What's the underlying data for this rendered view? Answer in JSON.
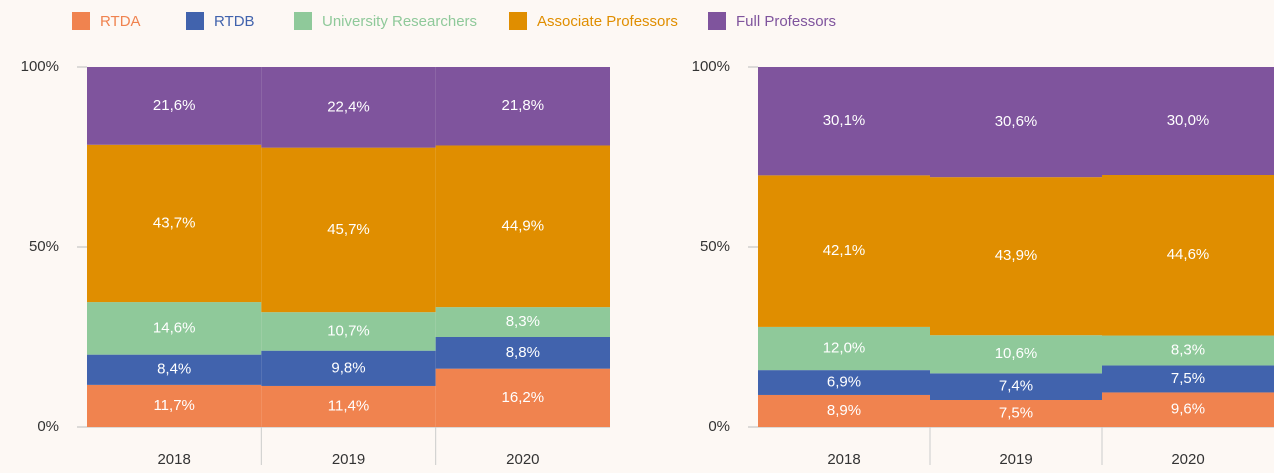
{
  "chart_data": [
    {
      "type": "stacked_bar_100",
      "categories": [
        "2018",
        "2019",
        "2020"
      ],
      "ylim": [
        0,
        100
      ],
      "yticks": [
        {
          "value": 0,
          "label": "0%"
        },
        {
          "value": 50,
          "label": "50%"
        },
        {
          "value": 100,
          "label": "100%"
        }
      ],
      "series": [
        {
          "name": "RTDA",
          "color": "#f0834f",
          "values": [
            11.7,
            11.4,
            16.2
          ],
          "value_labels": [
            "11,7%",
            "11,4%",
            "16,2%"
          ]
        },
        {
          "name": "RTDB",
          "color": "#4163ad",
          "values": [
            8.4,
            9.8,
            8.8
          ],
          "value_labels": [
            "8,4%",
            "9,8%",
            "8,8%"
          ]
        },
        {
          "name": "University Researchers",
          "color": "#8fc99a",
          "values": [
            14.6,
            10.7,
            8.3
          ],
          "value_labels": [
            "14,6%",
            "10,7%",
            "8,3%"
          ]
        },
        {
          "name": "Associate Professors",
          "color": "#e08e00",
          "values": [
            43.7,
            45.7,
            44.9
          ],
          "value_labels": [
            "43,7%",
            "45,7%",
            "44,9%"
          ]
        },
        {
          "name": "Full Professors",
          "color": "#7f549d",
          "values": [
            21.6,
            22.4,
            21.8
          ],
          "value_labels": [
            "21,6%",
            "22,4%",
            "21,8%"
          ]
        }
      ]
    },
    {
      "type": "stacked_bar_100",
      "categories": [
        "2018",
        "2019",
        "2020"
      ],
      "ylim": [
        0,
        100
      ],
      "yticks": [
        {
          "value": 0,
          "label": "0%"
        },
        {
          "value": 50,
          "label": "50%"
        },
        {
          "value": 100,
          "label": "100%"
        }
      ],
      "series": [
        {
          "name": "RTDA",
          "color": "#f0834f",
          "values": [
            8.9,
            7.5,
            9.6
          ],
          "value_labels": [
            "8,9%",
            "7,5%",
            "9,6%"
          ]
        },
        {
          "name": "RTDB",
          "color": "#4163ad",
          "values": [
            6.9,
            7.4,
            7.5
          ],
          "value_labels": [
            "6,9%",
            "7,4%",
            "7,5%"
          ]
        },
        {
          "name": "University Researchers",
          "color": "#8fc99a",
          "values": [
            12.0,
            10.6,
            8.3
          ],
          "value_labels": [
            "12,0%",
            "10,6%",
            "8,3%"
          ]
        },
        {
          "name": "Associate Professors",
          "color": "#e08e00",
          "values": [
            42.1,
            43.9,
            44.6
          ],
          "value_labels": [
            "42,1%",
            "43,9%",
            "44,6%"
          ]
        },
        {
          "name": "Full Professors",
          "color": "#7f549d",
          "values": [
            30.1,
            30.6,
            30.0
          ],
          "value_labels": [
            "30,1%",
            "30,6%",
            "30,0%"
          ]
        }
      ]
    }
  ]
}
